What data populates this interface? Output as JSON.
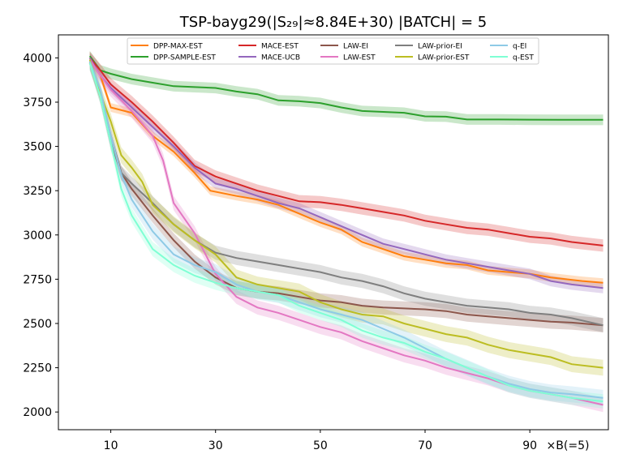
{
  "chart_data": {
    "type": "line",
    "title": "TSP-bayg29(|S₂₉|≈8.84E+30) |BATCH| = 5",
    "xlabel": "×B(=5)",
    "ylabel": "",
    "xlim": [
      0,
      105
    ],
    "ylim": [
      1900,
      4130
    ],
    "x_ticks": [
      10,
      30,
      50,
      70,
      90
    ],
    "y_ticks": [
      2000,
      2250,
      2500,
      2750,
      3000,
      3250,
      3500,
      3750,
      4000
    ],
    "legend_position": "top",
    "series": [
      {
        "name": "DPP-MAX-EST",
        "color": "#ff7f0e",
        "band": 25,
        "points": [
          [
            6,
            4000
          ],
          [
            8,
            3900
          ],
          [
            10,
            3720
          ],
          [
            14,
            3690
          ],
          [
            18,
            3560
          ],
          [
            22,
            3470
          ],
          [
            26,
            3350
          ],
          [
            29,
            3250
          ],
          [
            34,
            3220
          ],
          [
            38,
            3200
          ],
          [
            42,
            3170
          ],
          [
            46,
            3120
          ],
          [
            50,
            3070
          ],
          [
            54,
            3030
          ],
          [
            58,
            2960
          ],
          [
            62,
            2920
          ],
          [
            66,
            2880
          ],
          [
            70,
            2860
          ],
          [
            74,
            2840
          ],
          [
            78,
            2830
          ],
          [
            82,
            2800
          ],
          [
            86,
            2790
          ],
          [
            90,
            2780
          ],
          [
            94,
            2760
          ],
          [
            100,
            2740
          ],
          [
            104,
            2730
          ]
        ]
      },
      {
        "name": "DPP-SAMPLE-EST",
        "color": "#2ca02c",
        "band": 30,
        "points": [
          [
            6,
            4010
          ],
          [
            8,
            3930
          ],
          [
            10,
            3910
          ],
          [
            14,
            3880
          ],
          [
            18,
            3860
          ],
          [
            22,
            3840
          ],
          [
            26,
            3835
          ],
          [
            30,
            3830
          ],
          [
            34,
            3810
          ],
          [
            38,
            3795
          ],
          [
            42,
            3760
          ],
          [
            46,
            3755
          ],
          [
            50,
            3745
          ],
          [
            54,
            3720
          ],
          [
            58,
            3700
          ],
          [
            62,
            3695
          ],
          [
            66,
            3690
          ],
          [
            70,
            3670
          ],
          [
            74,
            3668
          ],
          [
            78,
            3652
          ],
          [
            84,
            3652
          ],
          [
            90,
            3651
          ],
          [
            96,
            3650
          ],
          [
            104,
            3650
          ]
        ]
      },
      {
        "name": "MACE-EST",
        "color": "#d62728",
        "band": 35,
        "points": [
          [
            6,
            4000
          ],
          [
            8,
            3930
          ],
          [
            10,
            3850
          ],
          [
            14,
            3750
          ],
          [
            18,
            3640
          ],
          [
            22,
            3520
          ],
          [
            26,
            3390
          ],
          [
            30,
            3330
          ],
          [
            34,
            3290
          ],
          [
            38,
            3250
          ],
          [
            42,
            3220
          ],
          [
            46,
            3190
          ],
          [
            50,
            3185
          ],
          [
            54,
            3170
          ],
          [
            58,
            3150
          ],
          [
            62,
            3130
          ],
          [
            66,
            3110
          ],
          [
            70,
            3080
          ],
          [
            74,
            3060
          ],
          [
            78,
            3040
          ],
          [
            82,
            3030
          ],
          [
            86,
            3010
          ],
          [
            90,
            2990
          ],
          [
            94,
            2980
          ],
          [
            98,
            2960
          ],
          [
            104,
            2940
          ]
        ]
      },
      {
        "name": "MACE-UCB",
        "color": "#9467bd",
        "band": 30,
        "points": [
          [
            6,
            4000
          ],
          [
            8,
            3900
          ],
          [
            10,
            3830
          ],
          [
            14,
            3720
          ],
          [
            18,
            3610
          ],
          [
            22,
            3500
          ],
          [
            26,
            3380
          ],
          [
            30,
            3290
          ],
          [
            34,
            3260
          ],
          [
            38,
            3220
          ],
          [
            42,
            3180
          ],
          [
            46,
            3150
          ],
          [
            50,
            3100
          ],
          [
            54,
            3050
          ],
          [
            58,
            3000
          ],
          [
            62,
            2950
          ],
          [
            66,
            2920
          ],
          [
            70,
            2890
          ],
          [
            74,
            2860
          ],
          [
            78,
            2840
          ],
          [
            82,
            2820
          ],
          [
            86,
            2800
          ],
          [
            90,
            2780
          ],
          [
            94,
            2740
          ],
          [
            98,
            2720
          ],
          [
            104,
            2700
          ]
        ]
      },
      {
        "name": "LAW-EI",
        "color": "#8c564b",
        "band": 40,
        "points": [
          [
            6,
            3970
          ],
          [
            8,
            3800
          ],
          [
            10,
            3560
          ],
          [
            12,
            3350
          ],
          [
            14,
            3260
          ],
          [
            18,
            3110
          ],
          [
            22,
            2970
          ],
          [
            26,
            2850
          ],
          [
            30,
            2760
          ],
          [
            34,
            2700
          ],
          [
            38,
            2680
          ],
          [
            42,
            2670
          ],
          [
            46,
            2650
          ],
          [
            50,
            2630
          ],
          [
            54,
            2620
          ],
          [
            58,
            2600
          ],
          [
            62,
            2590
          ],
          [
            66,
            2585
          ],
          [
            70,
            2580
          ],
          [
            74,
            2570
          ],
          [
            78,
            2550
          ],
          [
            82,
            2540
          ],
          [
            86,
            2530
          ],
          [
            90,
            2520
          ],
          [
            94,
            2510
          ],
          [
            98,
            2505
          ],
          [
            104,
            2490
          ]
        ]
      },
      {
        "name": "LAW-EST",
        "color": "#e377c2",
        "band": 40,
        "points": [
          [
            6,
            3990
          ],
          [
            8,
            3900
          ],
          [
            10,
            3820
          ],
          [
            14,
            3700
          ],
          [
            18,
            3560
          ],
          [
            20,
            3420
          ],
          [
            22,
            3180
          ],
          [
            26,
            3010
          ],
          [
            30,
            2780
          ],
          [
            34,
            2650
          ],
          [
            38,
            2590
          ],
          [
            42,
            2560
          ],
          [
            46,
            2520
          ],
          [
            50,
            2480
          ],
          [
            54,
            2450
          ],
          [
            58,
            2400
          ],
          [
            62,
            2360
          ],
          [
            66,
            2320
          ],
          [
            70,
            2290
          ],
          [
            74,
            2250
          ],
          [
            78,
            2220
          ],
          [
            82,
            2190
          ],
          [
            86,
            2150
          ],
          [
            90,
            2120
          ],
          [
            94,
            2100
          ],
          [
            98,
            2080
          ],
          [
            104,
            2040
          ]
        ]
      },
      {
        "name": "LAW-prior-EI",
        "color": "#7f7f7f",
        "band": 40,
        "points": [
          [
            6,
            3980
          ],
          [
            8,
            3780
          ],
          [
            10,
            3520
          ],
          [
            12,
            3350
          ],
          [
            14,
            3290
          ],
          [
            18,
            3180
          ],
          [
            22,
            3060
          ],
          [
            26,
            2970
          ],
          [
            30,
            2900
          ],
          [
            34,
            2870
          ],
          [
            38,
            2850
          ],
          [
            42,
            2830
          ],
          [
            46,
            2810
          ],
          [
            50,
            2790
          ],
          [
            54,
            2760
          ],
          [
            58,
            2740
          ],
          [
            62,
            2710
          ],
          [
            66,
            2670
          ],
          [
            70,
            2640
          ],
          [
            74,
            2620
          ],
          [
            78,
            2600
          ],
          [
            82,
            2590
          ],
          [
            86,
            2580
          ],
          [
            90,
            2560
          ],
          [
            94,
            2550
          ],
          [
            98,
            2530
          ],
          [
            104,
            2490
          ]
        ]
      },
      {
        "name": "LAW-prior-EST",
        "color": "#bcbd22",
        "band": 45,
        "points": [
          [
            6,
            3990
          ],
          [
            8,
            3800
          ],
          [
            10,
            3640
          ],
          [
            12,
            3450
          ],
          [
            14,
            3380
          ],
          [
            16,
            3300
          ],
          [
            18,
            3170
          ],
          [
            22,
            3060
          ],
          [
            26,
            2970
          ],
          [
            30,
            2890
          ],
          [
            34,
            2760
          ],
          [
            38,
            2720
          ],
          [
            42,
            2700
          ],
          [
            46,
            2680
          ],
          [
            50,
            2620
          ],
          [
            54,
            2580
          ],
          [
            58,
            2550
          ],
          [
            62,
            2540
          ],
          [
            66,
            2500
          ],
          [
            70,
            2470
          ],
          [
            74,
            2440
          ],
          [
            78,
            2420
          ],
          [
            82,
            2380
          ],
          [
            86,
            2350
          ],
          [
            90,
            2330
          ],
          [
            94,
            2310
          ],
          [
            98,
            2270
          ],
          [
            104,
            2250
          ]
        ]
      },
      {
        "name": "q-EI",
        "color": "#8ecae6",
        "band": 45,
        "points": [
          [
            6,
            3980
          ],
          [
            8,
            3820
          ],
          [
            10,
            3560
          ],
          [
            12,
            3340
          ],
          [
            14,
            3200
          ],
          [
            18,
            3020
          ],
          [
            22,
            2890
          ],
          [
            26,
            2830
          ],
          [
            30,
            2790
          ],
          [
            34,
            2720
          ],
          [
            38,
            2680
          ],
          [
            42,
            2660
          ],
          [
            46,
            2620
          ],
          [
            50,
            2580
          ],
          [
            54,
            2550
          ],
          [
            58,
            2520
          ],
          [
            62,
            2470
          ],
          [
            66,
            2420
          ],
          [
            70,
            2360
          ],
          [
            74,
            2300
          ],
          [
            78,
            2250
          ],
          [
            82,
            2200
          ],
          [
            86,
            2160
          ],
          [
            90,
            2130
          ],
          [
            94,
            2110
          ],
          [
            98,
            2100
          ],
          [
            104,
            2080
          ]
        ]
      },
      {
        "name": "q-EST",
        "color": "#7fffd4",
        "band": 40,
        "points": [
          [
            6,
            3970
          ],
          [
            8,
            3780
          ],
          [
            10,
            3520
          ],
          [
            12,
            3260
          ],
          [
            14,
            3110
          ],
          [
            18,
            2920
          ],
          [
            22,
            2830
          ],
          [
            26,
            2770
          ],
          [
            30,
            2730
          ],
          [
            34,
            2700
          ],
          [
            38,
            2680
          ],
          [
            42,
            2660
          ],
          [
            46,
            2600
          ],
          [
            50,
            2560
          ],
          [
            54,
            2520
          ],
          [
            58,
            2460
          ],
          [
            62,
            2420
          ],
          [
            66,
            2390
          ],
          [
            70,
            2340
          ],
          [
            74,
            2300
          ],
          [
            78,
            2250
          ],
          [
            82,
            2200
          ],
          [
            86,
            2150
          ],
          [
            90,
            2120
          ],
          [
            94,
            2100
          ],
          [
            98,
            2080
          ],
          [
            104,
            2060
          ]
        ]
      }
    ]
  }
}
